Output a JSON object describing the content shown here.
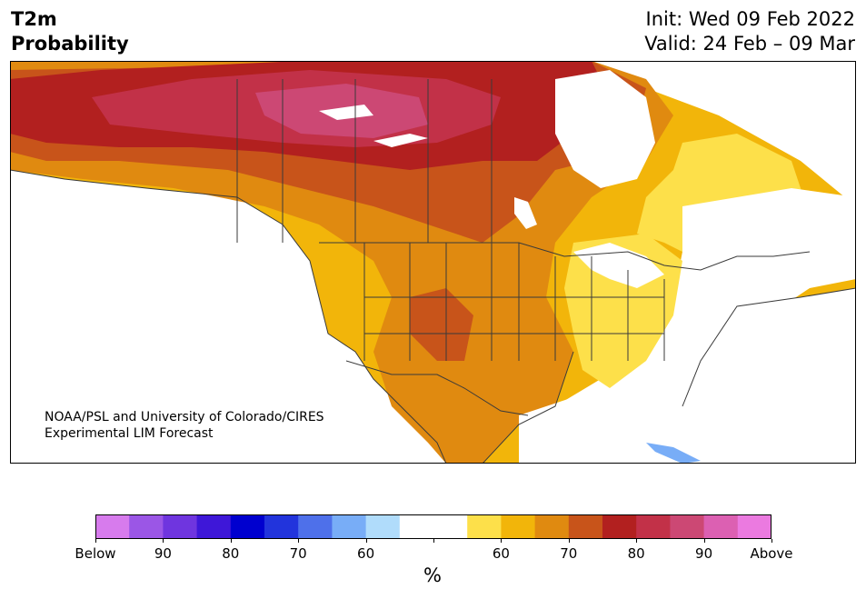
{
  "header": {
    "title_line1": "T2m",
    "title_line2": "Probability",
    "init": "Init: Wed 09 Feb 2022",
    "valid": "Valid: 24 Feb – 09 Mar"
  },
  "credit": {
    "line1": "NOAA/PSL and University of Colorado/CIRES",
    "line2": "Experimental LIM Forecast"
  },
  "colorbar": {
    "unit": "%",
    "colors": [
      "#d77bed",
      "#9b56e6",
      "#6f35df",
      "#3e17d8",
      "#0000cf",
      "#2234dc",
      "#4e70ea",
      "#78adf7",
      "#b0dcfb",
      "#ffffff",
      "#ffffff",
      "#fde04a",
      "#f2b50a",
      "#e08a10",
      "#c8541a",
      "#b2201f",
      "#c23148",
      "#cc4874",
      "#dc60b2",
      "#eb7ae0"
    ],
    "labels": [
      "Below",
      "90",
      "80",
      "70",
      "60",
      "",
      "60",
      "70",
      "80",
      "90",
      "Above"
    ]
  },
  "map": {
    "ocean_color": "#ffffff",
    "border_color": "#3a3a3a"
  }
}
